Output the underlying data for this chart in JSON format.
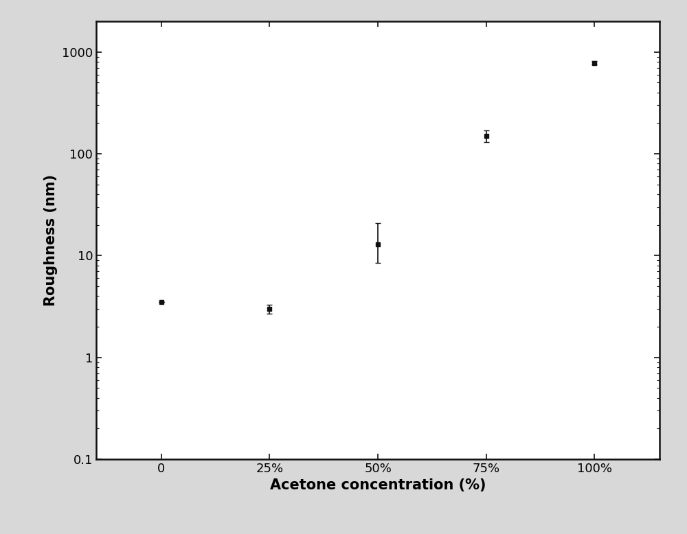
{
  "x_values": [
    0,
    25,
    50,
    75,
    100
  ],
  "x_labels": [
    "0",
    "25%",
    "50%",
    "75%",
    "100%"
  ],
  "y_values": [
    3.5,
    3.0,
    13.0,
    150.0,
    780.0
  ],
  "y_err_lower": [
    0.0,
    0.3,
    4.5,
    20.0,
    30.0
  ],
  "y_err_upper": [
    0.0,
    0.3,
    8.0,
    20.0,
    30.0
  ],
  "xlabel": "Acetone concentration (%)",
  "ylabel": "Roughness (nm)",
  "ylim_lower": 0.1,
  "ylim_upper": 2000,
  "xlim_lower": -15,
  "xlim_upper": 115,
  "marker": "s",
  "marker_size": 5,
  "marker_color": "#111111",
  "ecolor": "#111111",
  "capsize": 3,
  "elinewidth": 1.2,
  "markeredgewidth": 1.0,
  "xlabel_fontsize": 15,
  "ylabel_fontsize": 15,
  "tick_fontsize": 13,
  "figure_facecolor": "#d8d8d8",
  "plot_facecolor": "#ffffff",
  "spine_color": "#111111",
  "spine_linewidth": 1.8
}
